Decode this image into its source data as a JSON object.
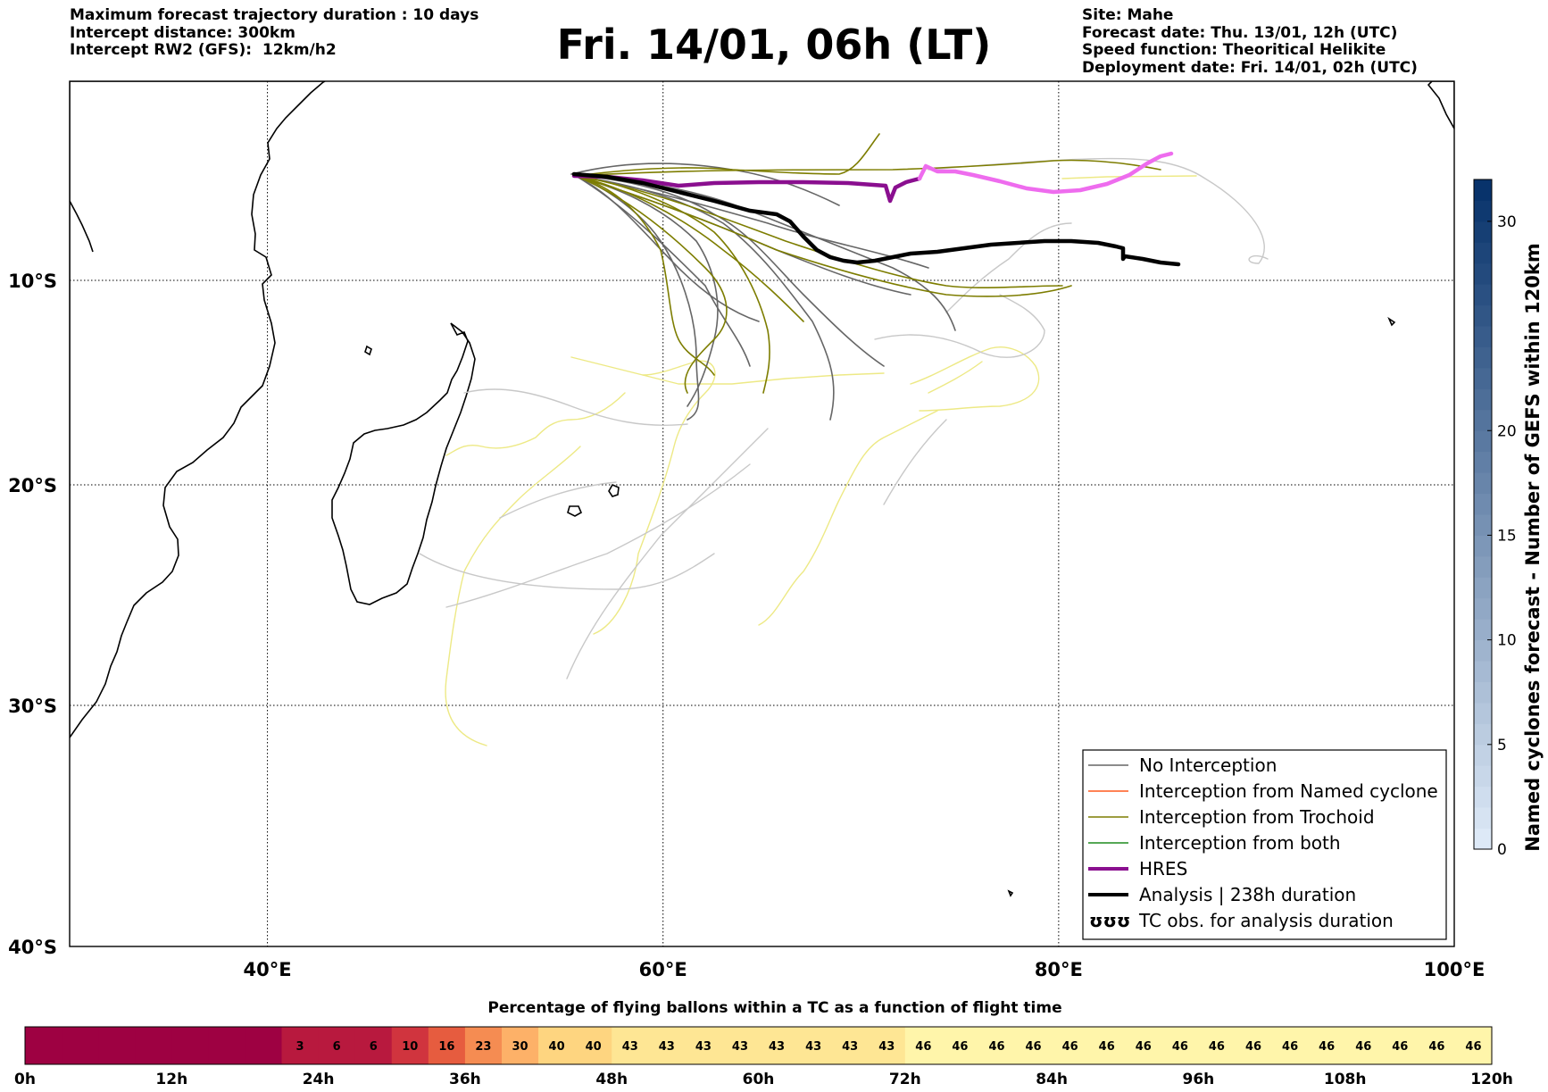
{
  "header": {
    "left_lines": [
      "Maximum forecast trajectory duration : 10 days",
      "Intercept distance: 300km",
      "Intercept RW2 (GFS):  12km/h2"
    ],
    "title": "Fri. 14/01, 06h (LT)",
    "right_lines": [
      "Site: Mahe",
      "Forecast date: Thu. 13/01, 12h (UTC)",
      "Speed function: Theoritical Helikite",
      "Deployment date: Fri. 14/01, 02h (UTC)"
    ]
  },
  "map": {
    "lon_range": [
      30,
      100
    ],
    "lat_range": [
      -40,
      0
    ],
    "lon_ticks": [
      {
        "v": 40,
        "label": "40°E"
      },
      {
        "v": 60,
        "label": "60°E"
      },
      {
        "v": 80,
        "label": "80°E"
      },
      {
        "v": 100,
        "label": "100°E"
      }
    ],
    "lat_ticks": [
      {
        "v": -10,
        "label": "10°S"
      },
      {
        "v": -20,
        "label": "20°S"
      },
      {
        "v": -30,
        "label": "30°S"
      },
      {
        "v": -40,
        "label": "40°S"
      }
    ],
    "colors": {
      "no_interception": "#666666",
      "no_interception_light": "#c8c8c8",
      "named_cyclone": "#ff5a1e",
      "trochoid": "#7d7d00",
      "both": "#1e8c1e",
      "hres_start": "#8a0f8f",
      "hres_end": "#ee6cee",
      "analysis": "#000000",
      "yellow_track": "#ede985"
    }
  },
  "legend": {
    "items": [
      {
        "label": "No Interception",
        "color": "#666666",
        "lw": 1.5
      },
      {
        "label": "Interception from Named cyclone",
        "color": "#ff5a1e",
        "lw": 1.5
      },
      {
        "label": "Interception from Trochoid",
        "color": "#7d7d00",
        "lw": 1.5
      },
      {
        "label": "Interception from both",
        "color": "#1e8c1e",
        "lw": 1.5
      },
      {
        "label": "HRES",
        "color": "#8a0f8f",
        "lw": 4
      },
      {
        "label": "Analysis | 238h duration",
        "color": "#000000",
        "lw": 4
      },
      {
        "label": "TC obs. for analysis duration",
        "color": "#000000",
        "symbol": "ʊʊʊ"
      }
    ]
  },
  "colorbar": {
    "label": "Named cyclones forecast - Number of GEFS within 120km",
    "min": 0,
    "max": 32,
    "ticks": [
      0,
      5,
      10,
      15,
      20,
      30
    ],
    "color_low": "#dde9f7",
    "color_high": "#08336b"
  },
  "strip": {
    "title": "Percentage of flying ballons within a TC as a function of flight time",
    "hours_per_cell": 3,
    "values": [
      0,
      0,
      0,
      0,
      0,
      0,
      0,
      3,
      6,
      6,
      10,
      16,
      23,
      30,
      40,
      40,
      43,
      43,
      43,
      43,
      43,
      43,
      43,
      43,
      46,
      46,
      46,
      46,
      46,
      46,
      46,
      46,
      46,
      46,
      46,
      46,
      46,
      46,
      46,
      46
    ],
    "tick_labels": [
      {
        "h": 0,
        "label": "0h"
      },
      {
        "h": 12,
        "label": "12h"
      },
      {
        "h": 24,
        "label": "24h"
      },
      {
        "h": 36,
        "label": "36h"
      },
      {
        "h": 48,
        "label": "48h"
      },
      {
        "h": 60,
        "label": "60h"
      },
      {
        "h": 72,
        "label": "72h"
      },
      {
        "h": 84,
        "label": "84h"
      },
      {
        "h": 96,
        "label": "96h"
      },
      {
        "h": 108,
        "label": "108h"
      },
      {
        "h": 120,
        "label": "120h"
      }
    ],
    "max_hours": 120
  }
}
